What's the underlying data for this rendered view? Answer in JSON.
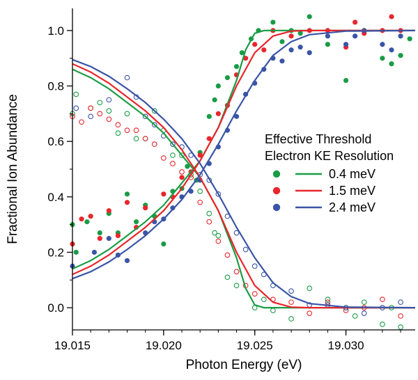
{
  "chart_data": {
    "type": "scatter",
    "xlabel": "Photon Energy (eV)",
    "ylabel": "Fractional Ion Abundance",
    "xlim": [
      19.015,
      19.0338
    ],
    "ylim": [
      -0.08,
      1.08
    ],
    "x_ticks": [
      "19.015",
      "19.020",
      "19.025",
      "19.030"
    ],
    "x_tick_values": [
      19.015,
      19.02,
      19.025,
      19.03
    ],
    "y_ticks": [
      "0.0",
      "0.2",
      "0.4",
      "0.6",
      "0.8",
      "1.0"
    ],
    "y_tick_values": [
      0.0,
      0.2,
      0.4,
      0.6,
      0.8,
      1.0
    ],
    "grid": false,
    "legend": {
      "title_line1": "Effective Threshold",
      "title_line2": "Electron KE Resolution",
      "placement": "center-right"
    },
    "series": [
      {
        "name": "0.4 meV",
        "color": "#1a9c46",
        "fit_rising": [
          [
            19.015,
            0.14
          ],
          [
            19.016,
            0.17
          ],
          [
            19.017,
            0.21
          ],
          [
            19.018,
            0.26
          ],
          [
            19.019,
            0.31
          ],
          [
            19.02,
            0.37
          ],
          [
            19.021,
            0.45
          ],
          [
            19.022,
            0.53
          ],
          [
            19.023,
            0.65
          ],
          [
            19.024,
            0.82
          ],
          [
            19.0245,
            0.93
          ],
          [
            19.025,
            0.99
          ],
          [
            19.0255,
            1.0
          ],
          [
            19.027,
            1.0
          ],
          [
            19.0338,
            1.0
          ]
        ],
        "fit_falling": [
          [
            19.015,
            0.86
          ],
          [
            19.016,
            0.83
          ],
          [
            19.017,
            0.79
          ],
          [
            19.018,
            0.74
          ],
          [
            19.019,
            0.69
          ],
          [
            19.02,
            0.63
          ],
          [
            19.021,
            0.55
          ],
          [
            19.022,
            0.47
          ],
          [
            19.023,
            0.35
          ],
          [
            19.024,
            0.18
          ],
          [
            19.0245,
            0.07
          ],
          [
            19.025,
            0.01
          ],
          [
            19.0255,
            0.0
          ],
          [
            19.027,
            0.0
          ],
          [
            19.0338,
            0.0
          ]
        ],
        "filled": [
          [
            19.015,
            0.3
          ],
          [
            19.0152,
            0.2
          ],
          [
            19.0158,
            0.31
          ],
          [
            19.0165,
            0.27
          ],
          [
            19.017,
            0.34
          ],
          [
            19.0175,
            0.27
          ],
          [
            19.018,
            0.41
          ],
          [
            19.0185,
            0.31
          ],
          [
            19.019,
            0.37
          ],
          [
            19.0195,
            0.33
          ],
          [
            19.02,
            0.23
          ],
          [
            19.0205,
            0.42
          ],
          [
            19.021,
            0.43
          ],
          [
            19.0213,
            0.51
          ],
          [
            19.0218,
            0.46
          ],
          [
            19.022,
            0.56
          ],
          [
            19.0225,
            0.69
          ],
          [
            19.0228,
            0.75
          ],
          [
            19.023,
            0.8
          ],
          [
            19.0235,
            0.83
          ],
          [
            19.024,
            0.87
          ],
          [
            19.0243,
            0.92
          ],
          [
            19.0248,
            0.97
          ],
          [
            19.0252,
            1.0
          ],
          [
            19.026,
            1.03
          ],
          [
            19.0265,
            0.96
          ],
          [
            19.027,
            1.0
          ],
          [
            19.0275,
            0.99
          ],
          [
            19.028,
            1.05
          ],
          [
            19.029,
            0.95
          ],
          [
            19.03,
            0.82
          ],
          [
            19.031,
            1.0
          ],
          [
            19.032,
            0.9
          ],
          [
            19.0325,
            0.88
          ],
          [
            19.033,
            0.91
          ],
          [
            19.0335,
            0.97
          ]
        ],
        "open": [
          [
            19.015,
            0.7
          ],
          [
            19.0152,
            0.77
          ],
          [
            19.016,
            0.72
          ],
          [
            19.0165,
            0.74
          ],
          [
            19.017,
            0.71
          ],
          [
            19.0175,
            0.63
          ],
          [
            19.018,
            0.7
          ],
          [
            19.0185,
            0.61
          ],
          [
            19.019,
            0.61
          ],
          [
            19.0195,
            0.71
          ],
          [
            19.02,
            0.64
          ],
          [
            19.0205,
            0.55
          ],
          [
            19.021,
            0.55
          ],
          [
            19.0215,
            0.48
          ],
          [
            19.022,
            0.42
          ],
          [
            19.0225,
            0.34
          ],
          [
            19.0228,
            0.27
          ],
          [
            19.023,
            0.26
          ],
          [
            19.0235,
            0.11
          ],
          [
            19.024,
            0.08
          ],
          [
            19.025,
            0.0
          ],
          [
            19.0255,
            0.03
          ],
          [
            19.026,
            -0.01
          ],
          [
            19.027,
            -0.04
          ],
          [
            19.028,
            0.07
          ],
          [
            19.029,
            0.03
          ],
          [
            19.03,
            0.0
          ],
          [
            19.0305,
            -0.03
          ],
          [
            19.031,
            0.02
          ],
          [
            19.032,
            -0.06
          ],
          [
            19.0325,
            0.0
          ],
          [
            19.033,
            -0.07
          ]
        ]
      },
      {
        "name": "1.5 meV",
        "color": "#e8262c",
        "fit_rising": [
          [
            19.015,
            0.12
          ],
          [
            19.016,
            0.15
          ],
          [
            19.017,
            0.19
          ],
          [
            19.018,
            0.24
          ],
          [
            19.019,
            0.29
          ],
          [
            19.02,
            0.35
          ],
          [
            19.021,
            0.43
          ],
          [
            19.022,
            0.53
          ],
          [
            19.023,
            0.65
          ],
          [
            19.024,
            0.8
          ],
          [
            19.025,
            0.92
          ],
          [
            19.026,
            0.98
          ],
          [
            19.027,
            0.998
          ],
          [
            19.028,
            1.0
          ],
          [
            19.0338,
            1.0
          ]
        ],
        "fit_falling": [
          [
            19.015,
            0.88
          ],
          [
            19.016,
            0.85
          ],
          [
            19.017,
            0.81
          ],
          [
            19.018,
            0.76
          ],
          [
            19.019,
            0.71
          ],
          [
            19.02,
            0.65
          ],
          [
            19.021,
            0.57
          ],
          [
            19.022,
            0.47
          ],
          [
            19.023,
            0.35
          ],
          [
            19.024,
            0.2
          ],
          [
            19.025,
            0.08
          ],
          [
            19.026,
            0.02
          ],
          [
            19.027,
            0.002
          ],
          [
            19.028,
            0.0
          ],
          [
            19.0338,
            0.0
          ]
        ],
        "filled": [
          [
            19.015,
            0.23
          ],
          [
            19.0155,
            0.32
          ],
          [
            19.016,
            0.33
          ],
          [
            19.0165,
            0.25
          ],
          [
            19.017,
            0.35
          ],
          [
            19.0175,
            0.26
          ],
          [
            19.018,
            0.38
          ],
          [
            19.0185,
            0.29
          ],
          [
            19.019,
            0.36
          ],
          [
            19.02,
            0.41
          ],
          [
            19.0205,
            0.4
          ],
          [
            19.021,
            0.47
          ],
          [
            19.0215,
            0.49
          ],
          [
            19.022,
            0.55
          ],
          [
            19.0225,
            0.61
          ],
          [
            19.023,
            0.7
          ],
          [
            19.0235,
            0.73
          ],
          [
            19.024,
            0.84
          ],
          [
            19.0245,
            0.9
          ],
          [
            19.025,
            0.95
          ],
          [
            19.0255,
            0.93
          ],
          [
            19.026,
            1.0
          ],
          [
            19.027,
            0.98
          ],
          [
            19.028,
            1.0
          ],
          [
            19.029,
            1.0
          ],
          [
            19.03,
            0.94
          ],
          [
            19.0305,
            1.03
          ],
          [
            19.031,
            0.99
          ],
          [
            19.032,
            1.0
          ],
          [
            19.0325,
            1.05
          ],
          [
            19.033,
            1.0
          ]
        ],
        "open": [
          [
            19.015,
            0.69
          ],
          [
            19.0155,
            0.67
          ],
          [
            19.016,
            0.72
          ],
          [
            19.0165,
            0.7
          ],
          [
            19.017,
            0.68
          ],
          [
            19.0175,
            0.66
          ],
          [
            19.018,
            0.64
          ],
          [
            19.0185,
            0.64
          ],
          [
            19.019,
            0.61
          ],
          [
            19.0195,
            0.59
          ],
          [
            19.02,
            0.54
          ],
          [
            19.0205,
            0.52
          ],
          [
            19.021,
            0.49
          ],
          [
            19.0215,
            0.47
          ],
          [
            19.022,
            0.38
          ],
          [
            19.0225,
            0.31
          ],
          [
            19.023,
            0.24
          ],
          [
            19.0235,
            0.19
          ],
          [
            19.024,
            0.13
          ],
          [
            19.0245,
            0.08
          ],
          [
            19.025,
            0.05
          ],
          [
            19.026,
            0.03
          ],
          [
            19.027,
            0.02
          ],
          [
            19.028,
            -0.02
          ],
          [
            19.029,
            0.02
          ],
          [
            19.03,
            -0.01
          ],
          [
            19.031,
            0.0
          ],
          [
            19.032,
            0.03
          ],
          [
            19.033,
            -0.03
          ]
        ]
      },
      {
        "name": "2.4 meV",
        "color": "#3a55a6",
        "fit_rising": [
          [
            19.015,
            0.105
          ],
          [
            19.016,
            0.13
          ],
          [
            19.017,
            0.165
          ],
          [
            19.018,
            0.21
          ],
          [
            19.019,
            0.26
          ],
          [
            19.02,
            0.32
          ],
          [
            19.021,
            0.39
          ],
          [
            19.022,
            0.48
          ],
          [
            19.023,
            0.59
          ],
          [
            19.024,
            0.71
          ],
          [
            19.025,
            0.82
          ],
          [
            19.026,
            0.91
          ],
          [
            19.027,
            0.96
          ],
          [
            19.028,
            0.985
          ],
          [
            19.03,
            0.998
          ],
          [
            19.0338,
            1.0
          ]
        ],
        "fit_falling": [
          [
            19.015,
            0.895
          ],
          [
            19.016,
            0.87
          ],
          [
            19.017,
            0.835
          ],
          [
            19.018,
            0.79
          ],
          [
            19.019,
            0.74
          ],
          [
            19.02,
            0.68
          ],
          [
            19.021,
            0.61
          ],
          [
            19.022,
            0.52
          ],
          [
            19.023,
            0.41
          ],
          [
            19.024,
            0.29
          ],
          [
            19.025,
            0.18
          ],
          [
            19.026,
            0.09
          ],
          [
            19.027,
            0.04
          ],
          [
            19.028,
            0.015
          ],
          [
            19.03,
            0.002
          ],
          [
            19.0338,
            0.0
          ]
        ],
        "filled": [
          [
            19.015,
            0.15
          ],
          [
            19.0162,
            0.2
          ],
          [
            19.017,
            0.25
          ],
          [
            19.0175,
            0.19
          ],
          [
            19.018,
            0.17
          ],
          [
            19.019,
            0.27
          ],
          [
            19.0195,
            0.31
          ],
          [
            19.02,
            0.32
          ],
          [
            19.0205,
            0.36
          ],
          [
            19.021,
            0.4
          ],
          [
            19.0215,
            0.42
          ],
          [
            19.022,
            0.46
          ],
          [
            19.0225,
            0.52
          ],
          [
            19.023,
            0.58
          ],
          [
            19.0235,
            0.64
          ],
          [
            19.024,
            0.69
          ],
          [
            19.0245,
            0.77
          ],
          [
            19.025,
            0.81
          ],
          [
            19.0255,
            0.86
          ],
          [
            19.026,
            0.9
          ],
          [
            19.0265,
            0.89
          ],
          [
            19.027,
            0.93
          ],
          [
            19.0275,
            0.94
          ],
          [
            19.028,
            0.92
          ],
          [
            19.029,
            0.98
          ],
          [
            19.03,
            0.95
          ],
          [
            19.0305,
            0.98
          ],
          [
            19.031,
            1.0
          ],
          [
            19.032,
            0.95
          ],
          [
            19.0325,
            0.93
          ],
          [
            19.033,
            0.98
          ]
        ],
        "open": [
          [
            19.0152,
            0.72
          ],
          [
            19.016,
            0.69
          ],
          [
            19.017,
            0.75
          ],
          [
            19.018,
            0.83
          ],
          [
            19.0185,
            0.76
          ],
          [
            19.019,
            0.69
          ],
          [
            19.0195,
            0.66
          ],
          [
            19.02,
            0.62
          ],
          [
            19.0205,
            0.59
          ],
          [
            19.021,
            0.58
          ],
          [
            19.0215,
            0.55
          ],
          [
            19.022,
            0.48
          ],
          [
            19.0225,
            0.46
          ],
          [
            19.023,
            0.41
          ],
          [
            19.0235,
            0.33
          ],
          [
            19.024,
            0.27
          ],
          [
            19.0245,
            0.21
          ],
          [
            19.025,
            0.15
          ],
          [
            19.0255,
            0.12
          ],
          [
            19.026,
            0.08
          ],
          [
            19.027,
            0.06
          ],
          [
            19.028,
            0.01
          ],
          [
            19.029,
            0.01
          ],
          [
            19.03,
            0.0
          ],
          [
            19.031,
            -0.02
          ],
          [
            19.032,
            0.0
          ],
          [
            19.033,
            0.02
          ]
        ]
      }
    ]
  }
}
